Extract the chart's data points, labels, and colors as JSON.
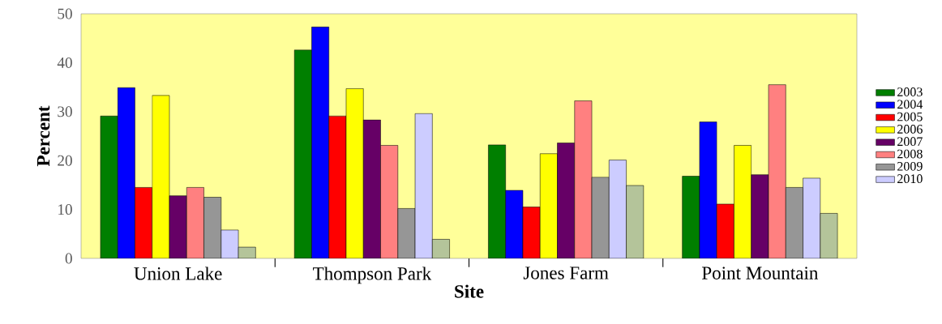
{
  "chart_data": {
    "type": "bar",
    "xlabel": "Site",
    "ylabel": "Percent",
    "categories": [
      "Union Lake",
      "Thompson Park",
      "Jones Farm",
      "Point Mountain"
    ],
    "series": [
      {
        "name": "2003",
        "color": "#007f00",
        "values": [
          29.1,
          42.6,
          23.2,
          16.8
        ]
      },
      {
        "name": "2004",
        "color": "#0000ff",
        "values": [
          34.9,
          47.3,
          13.9,
          27.9
        ]
      },
      {
        "name": "2005",
        "color": "#ff0000",
        "values": [
          14.5,
          29.1,
          10.5,
          11.1
        ]
      },
      {
        "name": "2006",
        "color": "#ffff00",
        "values": [
          33.3,
          34.7,
          21.4,
          23.1
        ]
      },
      {
        "name": "2007",
        "color": "#660066",
        "values": [
          12.8,
          28.3,
          23.6,
          17.1
        ]
      },
      {
        "name": "2008",
        "color": "#ff8080",
        "values": [
          14.5,
          23.1,
          32.2,
          35.5
        ]
      },
      {
        "name": "2009",
        "color": "#969696",
        "values": [
          12.5,
          10.2,
          16.6,
          14.5
        ]
      },
      {
        "name": "2010",
        "color": "#ccccff",
        "values": [
          5.8,
          29.6,
          20.1,
          16.4
        ]
      },
      {
        "color": "#b4c49a",
        "values": [
          2.3,
          3.9,
          14.9,
          9.2
        ]
      }
    ],
    "ylim": [
      0,
      50
    ],
    "yticks": [
      0,
      10,
      20,
      30,
      40,
      50
    ],
    "grid": false,
    "legend": "right"
  }
}
